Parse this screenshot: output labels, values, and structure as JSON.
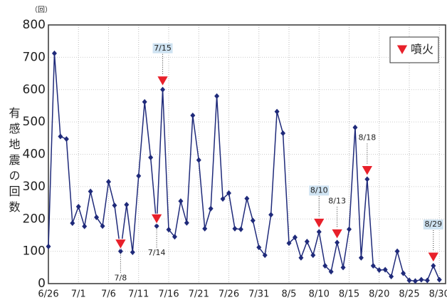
{
  "chart_data": {
    "type": "line",
    "y_label": "有感地震の回数",
    "unit": "（回）",
    "categories": [
      "6/26",
      null,
      null,
      null,
      null,
      "7/1",
      null,
      null,
      null,
      null,
      "7/6",
      null,
      null,
      null,
      null,
      "7/11",
      null,
      null,
      null,
      null,
      "7/16",
      null,
      null,
      null,
      null,
      "7/21",
      null,
      null,
      null,
      null,
      "7/26",
      null,
      null,
      null,
      null,
      "7/31",
      null,
      null,
      null,
      null,
      "8/5",
      null,
      null,
      null,
      null,
      "8/10",
      null,
      null,
      null,
      null,
      "8/15",
      null,
      null,
      null,
      null,
      "8/20",
      null,
      null,
      null,
      null,
      "8/25",
      null,
      null,
      null,
      null,
      "8/30"
    ],
    "series": [
      {
        "name": "有感地震の回数",
        "color": "#1f2a7a",
        "values": [
          115,
          712,
          455,
          447,
          187,
          238,
          177,
          285,
          205,
          178,
          315,
          242,
          100,
          244,
          97,
          333,
          562,
          390,
          178,
          600,
          167,
          145,
          255,
          188,
          520,
          382,
          170,
          232,
          580,
          262,
          280,
          170,
          168,
          263,
          195,
          112,
          88,
          213,
          532,
          465,
          125,
          143,
          80,
          130,
          88,
          160,
          55,
          37,
          127,
          50,
          168,
          483,
          80,
          323,
          55,
          42,
          43,
          22,
          100,
          32,
          10,
          8,
          12,
          10,
          55,
          12
        ]
      }
    ],
    "ylim": [
      0,
      800
    ],
    "yticks": [
      0,
      100,
      200,
      300,
      400,
      500,
      600,
      700,
      800
    ],
    "grid": true,
    "legend": {
      "label": "噴火",
      "color": "#e8202a",
      "position": "top-right"
    },
    "annotations": [
      {
        "text": "7/8",
        "index": 12,
        "position": "below",
        "highlight": false
      },
      {
        "text": "7/14",
        "index": 18,
        "position": "below",
        "highlight": false
      },
      {
        "text": "7/15",
        "index": 19,
        "position": "above",
        "highlight": true
      },
      {
        "text": "8/10",
        "index": 45,
        "position": "above",
        "highlight": true
      },
      {
        "text": "8/13",
        "index": 48,
        "position": "above",
        "highlight": false
      },
      {
        "text": "8/18",
        "index": 53,
        "position": "above",
        "highlight": false
      },
      {
        "text": "8/29",
        "index": 64,
        "position": "above",
        "highlight": true
      }
    ]
  }
}
